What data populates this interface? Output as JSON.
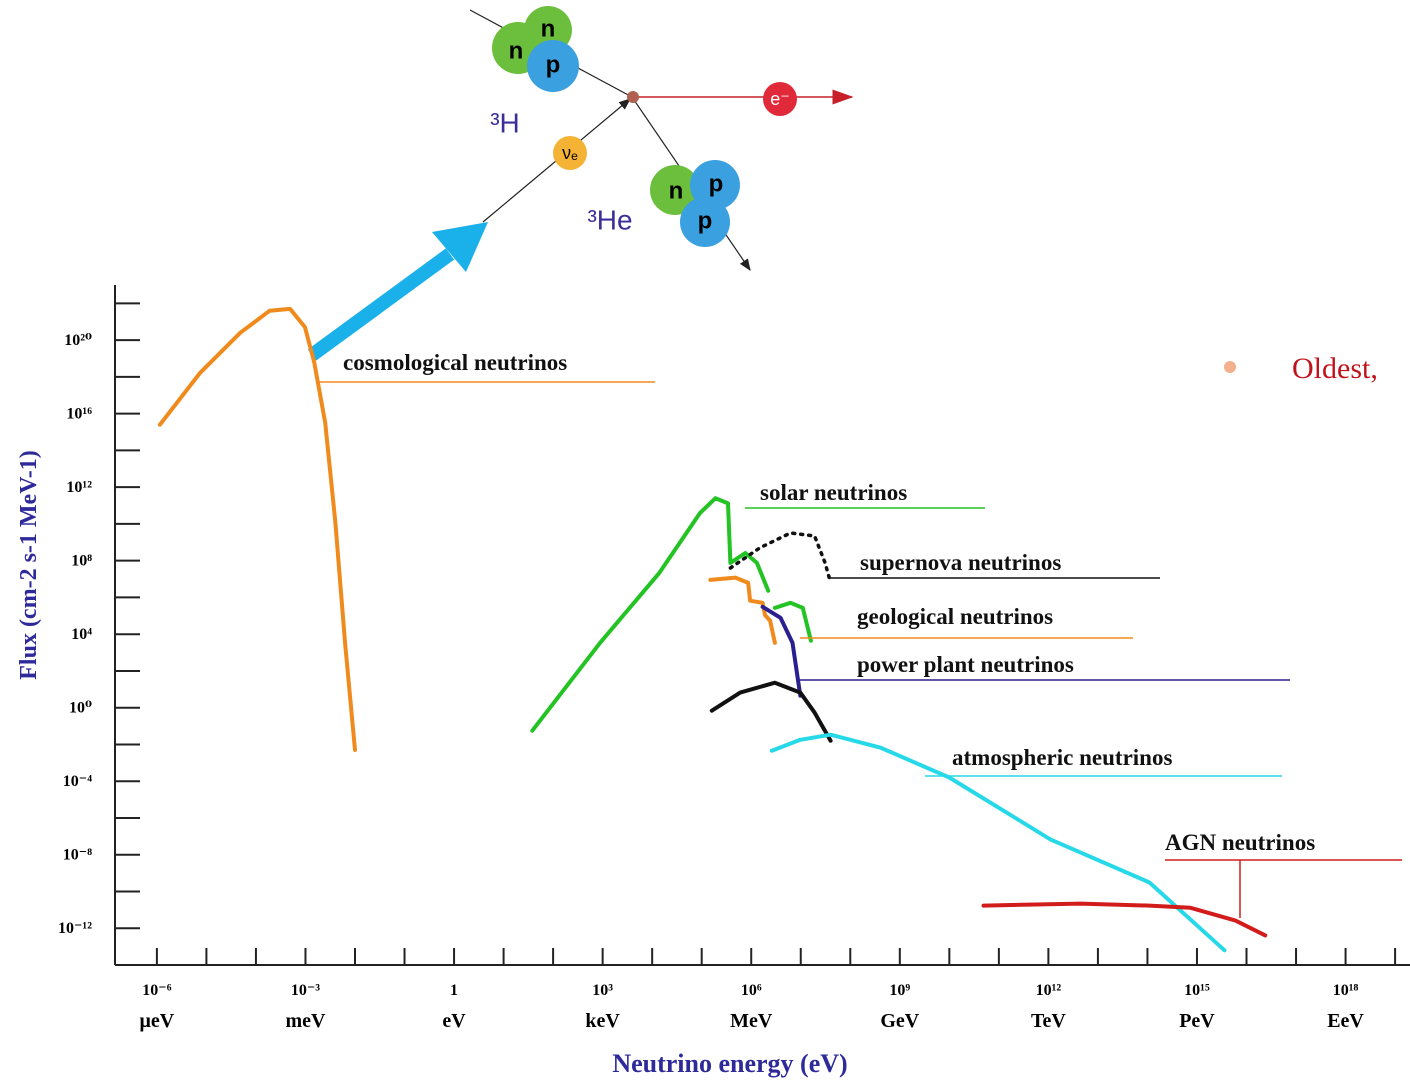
{
  "chart_data": {
    "type": "line",
    "x_label": "Neutrino energy (eV)",
    "y_label": "Flux (cm-2 s-1 MeV-1)",
    "x_log": true,
    "y_log": true,
    "xlim": [
      1.8e-07,
      2e+19
    ],
    "ylim": [
      1e-14,
      1e+23
    ],
    "xticks": [
      {
        "value": 1e-06,
        "label": "10⁻⁶",
        "unit": "μeV"
      },
      {
        "value": 0.001,
        "label": "10⁻³",
        "unit": "meV"
      },
      {
        "value": 1,
        "label": "1",
        "unit": "eV"
      },
      {
        "value": 1000.0,
        "label": "10³",
        "unit": "keV"
      },
      {
        "value": 1000000.0,
        "label": "10⁶",
        "unit": "MeV"
      },
      {
        "value": 1000000000.0,
        "label": "10⁹",
        "unit": "GeV"
      },
      {
        "value": 1000000000000.0,
        "label": "10¹²",
        "unit": "TeV"
      },
      {
        "value": 1000000000000000.0,
        "label": "10¹⁵",
        "unit": "PeV"
      },
      {
        "value": 1e+18,
        "label": "10¹⁸",
        "unit": "EeV"
      }
    ],
    "xminor": [
      1e-05,
      0.0001,
      0.01,
      0.1,
      10.0,
      100.0,
      10000.0,
      100000.0,
      10000000.0,
      100000000.0,
      10000000000.0,
      100000000000.0,
      10000000000000.0,
      100000000000000.0,
      1e+16,
      1e+17,
      1e+19
    ],
    "yticks": [
      {
        "value": 1e+20,
        "label": "10²⁰"
      },
      {
        "value": 1e+16,
        "label": "10¹⁶"
      },
      {
        "value": 1000000000000.0,
        "label": "10¹²"
      },
      {
        "value": 100000000.0,
        "label": "10⁸"
      },
      {
        "value": 10000.0,
        "label": "10⁴"
      },
      {
        "value": 1,
        "label": "10⁰"
      },
      {
        "value": 0.0001,
        "label": "10⁻⁴"
      },
      {
        "value": 1e-08,
        "label": "10⁻⁸"
      },
      {
        "value": 1e-12,
        "label": "10⁻¹²"
      }
    ],
    "yminor": [
      1e+22,
      1e+18,
      100000000000000.0,
      10000000000.0,
      1000000.0,
      100.0,
      0.01,
      1e-06,
      1e-10
    ],
    "series": [
      {
        "name": "cosmological neutrinos",
        "color": "#f08a1c",
        "x": [
          1.15e-06,
          7.4e-06,
          4.8e-05,
          0.00019,
          0.00049,
          0.00098,
          0.0015,
          0.0025,
          0.004,
          0.0063,
          0.01
        ],
        "values": [
          2500000000000000.0,
          1.6e+18,
          2.5e+20,
          4e+21,
          5e+21,
          5e+20,
          6.3e+18,
          3200000000000000.0,
          13000000000.0,
          3200,
          0.005
        ]
      },
      {
        "name": "solar neutrinos",
        "color": "#22c322",
        "x": [
          38,
          890,
          14000,
          93000,
          190000,
          340000,
          380000,
          760000,
          1300000,
          2200000,
          null,
          3000000,
          6200000,
          11000000,
          16000000
        ],
        "values": [
          0.056,
          3400,
          22000000.0,
          40000000000.0,
          250000000000.0,
          130000000000.0,
          76000000.0,
          260000000.0,
          76000000.0,
          2300000.0,
          null,
          270000.0,
          510000.0,
          270000.0,
          4400
        ]
      },
      {
        "name": "supernova neutrinos",
        "color": "#111111",
        "style": "dotted",
        "x": [
          380000,
          1500000,
          6200000,
          19000000.0,
          31000000.0,
          40000000.0
        ],
        "values": [
          40000000.0,
          500000000.0,
          3200000000.0,
          2200000000.0,
          76000000.0,
          6300000.0
        ]
      },
      {
        "name": "geological neutrinos",
        "color": "#f08a1c",
        "x": [
          150000,
          480000,
          870000,
          950000,
          1700000,
          1900000,
          2400000,
          3000000
        ],
        "values": [
          9000000.0,
          12000000.0,
          6200000.0,
          660000.0,
          510000.0,
          110000.0,
          54000,
          3400
        ]
      },
      {
        "name": "power plant neutrinos",
        "color": "#2a1f8f",
        "x": [
          1700000,
          3900000,
          6800000,
          9800000
        ],
        "values": [
          310000.0,
          78000,
          3400,
          4.5
        ]
      },
      {
        "color": "#111111",
        "x": [
          160000,
          600000,
          3000000,
          9800000,
          19000000.0,
          40000000.0
        ],
        "values": [
          0.69,
          6.6,
          23,
          6.6,
          0.54,
          0.016
        ]
      },
      {
        "name": "atmospheric neutrinos",
        "color": "#27d9e8",
        "x": [
          2600000,
          9800000,
          40000000.0,
          410000000.0,
          10000000000.0,
          1100000000000.0,
          110000000000000.0,
          3600000000000000.0
        ],
        "values": [
          0.0046,
          0.018,
          0.034,
          0.0067,
          0.00016,
          6.8e-08,
          3.1e-10,
          6.3e-14
        ]
      },
      {
        "name": "AGN neutrinos",
        "color": "#d21c1c",
        "x": [
          49000000000.0,
          4500000000000.0,
          110000000000000.0,
          740000000000000.0,
          6000000000000000.0,
          2.4e+16
        ],
        "values": [
          1.7e-11,
          2.2e-11,
          1.7e-11,
          1.3e-11,
          2.6e-12,
          4.1e-13
        ]
      }
    ]
  },
  "diagram": {
    "n1": "n",
    "n2": "n",
    "p1": "p",
    "tritium": "³H",
    "neutrino": "νₑ",
    "electron": "e⁻",
    "n3": "n",
    "p2": "p",
    "p3": "p",
    "helium": "³He"
  },
  "text": {
    "bullet": "Oldest,"
  }
}
